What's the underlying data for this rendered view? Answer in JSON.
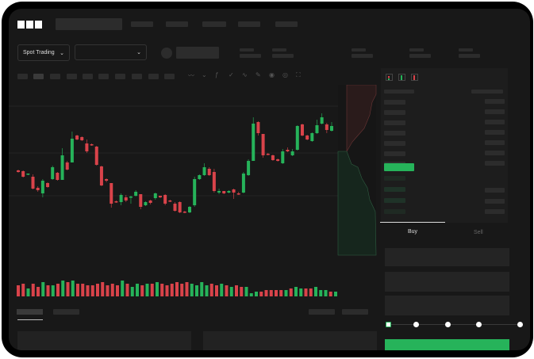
{
  "header": {
    "logo": "OKX"
  },
  "market_bar": {
    "mode_select": "Spot Trading",
    "pair_select": ""
  },
  "order_form": {
    "tabs": [
      {
        "label": "Buy",
        "active": true
      },
      {
        "label": "Sell",
        "active": false
      }
    ],
    "slider_fraction": 0,
    "slider_steps": 5
  },
  "colors": {
    "up": "#26b35a",
    "down": "#d9434a",
    "background": "#181818",
    "panel": "#1d1d1d"
  },
  "chart_data": {
    "type": "candlestick",
    "ohlc_order": [
      "open",
      "close",
      "high",
      "low"
    ],
    "candles": [
      [
        96,
        94,
        97,
        93
      ],
      [
        95,
        88,
        96,
        87
      ],
      [
        91,
        92,
        92,
        90
      ],
      [
        88,
        73,
        91,
        72
      ],
      [
        74,
        71,
        76,
        69
      ],
      [
        67,
        83,
        85,
        62
      ],
      [
        80,
        75,
        81,
        74
      ],
      [
        85,
        100,
        102,
        84
      ],
      [
        93,
        84,
        94,
        83
      ],
      [
        84,
        115,
        124,
        84
      ],
      [
        106,
        97,
        108,
        96
      ],
      [
        106,
        136,
        145,
        106
      ],
      [
        140,
        135,
        141,
        134
      ],
      [
        138,
        134,
        139,
        133
      ],
      [
        130,
        120,
        135,
        118
      ],
      [
        129,
        128,
        130,
        127
      ],
      [
        126,
        103,
        127,
        102
      ],
      [
        101,
        77,
        102,
        76
      ],
      [
        85,
        83,
        86,
        81
      ],
      [
        80,
        54,
        80,
        49
      ],
      [
        57,
        56,
        58,
        55
      ],
      [
        56,
        65,
        67,
        52
      ],
      [
        62,
        58,
        65,
        56
      ],
      [
        62,
        63,
        64,
        54
      ],
      [
        64,
        69,
        71,
        63
      ],
      [
        66,
        50,
        66,
        47
      ],
      [
        52,
        56,
        57,
        51
      ],
      [
        58,
        55,
        59,
        53
      ],
      [
        61,
        67,
        68,
        59
      ],
      [
        64,
        62,
        64,
        61
      ],
      [
        65,
        54,
        66,
        52
      ],
      [
        58,
        57,
        59,
        56
      ],
      [
        54,
        45,
        56,
        44
      ],
      [
        56,
        43,
        57,
        42
      ],
      [
        44,
        43,
        45,
        42
      ],
      [
        43,
        50,
        51,
        42
      ],
      [
        52,
        85,
        88,
        50
      ],
      [
        85,
        90,
        91,
        84
      ],
      [
        90,
        100,
        105,
        89
      ],
      [
        98,
        90,
        100,
        89
      ],
      [
        94,
        70,
        98,
        68
      ],
      [
        68,
        70,
        73,
        66
      ],
      [
        70,
        67,
        70,
        66
      ],
      [
        68,
        70,
        71,
        67
      ],
      [
        72,
        68,
        73,
        60
      ],
      [
        67,
        66,
        69,
        65
      ],
      [
        68,
        92,
        94,
        67
      ],
      [
        90,
        108,
        110,
        89
      ],
      [
        108,
        155,
        163,
        108
      ],
      [
        157,
        143,
        158,
        140
      ],
      [
        142,
        115,
        142,
        112
      ],
      [
        117,
        116,
        118,
        115
      ],
      [
        115,
        109,
        116,
        108
      ],
      [
        110,
        108,
        111,
        107
      ],
      [
        105,
        120,
        123,
        104
      ],
      [
        122,
        120,
        125,
        119
      ],
      [
        115,
        120,
        123,
        114
      ],
      [
        122,
        152,
        153,
        121
      ],
      [
        154,
        140,
        155,
        139
      ],
      [
        140,
        135,
        141,
        134
      ],
      [
        133,
        143,
        144,
        132
      ],
      [
        143,
        153,
        160,
        142
      ],
      [
        155,
        163,
        168,
        154
      ],
      [
        154,
        147,
        156,
        143
      ],
      [
        146,
        152,
        157,
        145
      ]
    ],
    "volume": [
      7,
      8,
      5,
      8,
      6,
      9,
      7,
      7,
      8,
      10,
      9,
      10,
      8,
      8,
      7,
      7,
      8,
      9,
      7,
      8,
      7,
      10,
      8,
      6,
      8,
      7,
      8,
      8,
      9,
      8,
      7,
      8,
      9,
      8,
      9,
      8,
      7,
      9,
      7,
      8,
      7,
      8,
      7,
      6,
      7,
      6,
      6,
      2,
      3,
      3,
      4,
      4,
      4,
      4,
      4,
      5,
      6,
      5,
      5,
      5,
      6,
      4,
      4,
      3,
      3
    ],
    "grid": true,
    "depth_chart": {
      "bids_color": "#26b35a",
      "asks_color": "#d9434a"
    }
  }
}
